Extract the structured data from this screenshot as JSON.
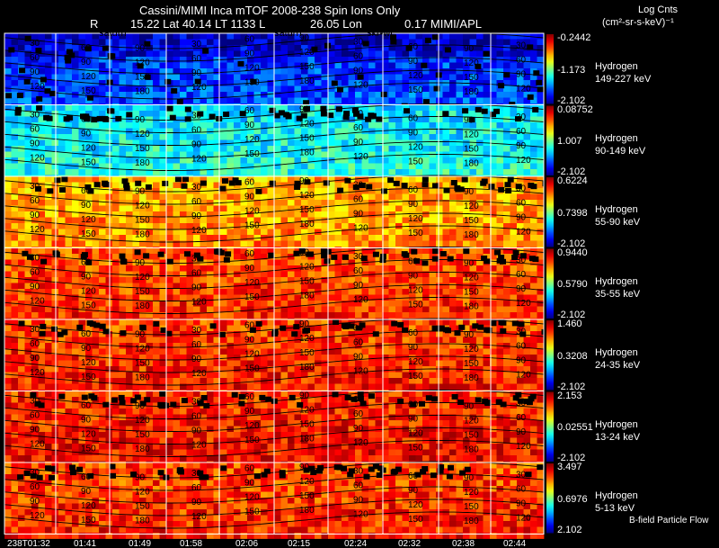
{
  "header": {
    "title": "Cassini/MIMI Inca mTOF  2008-238   Spin   Ions Only",
    "line2_r": "R",
    "line2_vals": "15.22 Lat 40.14 LT 1133 L",
    "line2_lon": "26.05 Lon",
    "line2_right": "0.17  MIMI/APL",
    "colorbar_title": "Log Cnts",
    "colorbar_units": "(cm²-sr-s-keV)⁻¹",
    "overlays": [
      "saturn",
      "saturn",
      "skr-wl"
    ],
    "footer_right": "B-field Particle Flow"
  },
  "chart_data": {
    "type": "heatmap",
    "time_labels": [
      "238T01:32",
      "01:41",
      "01:49",
      "01:58",
      "02:06",
      "02:15",
      "02:24",
      "02:32",
      "02:38",
      "02:44"
    ],
    "contour_labels": [
      "30",
      "60",
      "90",
      "120",
      "150",
      "180"
    ],
    "panels": [
      {
        "species": "Hydrogen",
        "energy": "149-227 keV",
        "cmax": "-0.2442",
        "cmid": "-1.173",
        "cmin": "-2.102",
        "level": 0.18
      },
      {
        "species": "Hydrogen",
        "energy": "90-149 keV",
        "cmax": "0.08752",
        "cmid": "1.007",
        "cmin": "-2.102",
        "level": 0.38
      },
      {
        "species": "Hydrogen",
        "energy": "55-90 keV",
        "cmax": "0.6224",
        "cmid": "0.7398",
        "cmin": "-2.102",
        "level": 0.72
      },
      {
        "species": "Hydrogen",
        "energy": "35-55 keV",
        "cmax": "0.9440",
        "cmid": "0.5790",
        "cmin": "-2.102",
        "level": 0.82
      },
      {
        "species": "Hydrogen",
        "energy": "24-35 keV",
        "cmax": "1.460",
        "cmid": "0.3208",
        "cmin": "-2.102",
        "level": 0.84
      },
      {
        "species": "Hydrogen",
        "energy": "13-24 keV",
        "cmax": "2.153",
        "cmid": "0.02551",
        "cmin": "-2.102",
        "level": 0.86
      },
      {
        "species": "Hydrogen",
        "energy": "5-13 keV",
        "cmax": "3.497",
        "cmid": "0.6976",
        "cmin": "2.102",
        "level": 0.83
      }
    ]
  }
}
